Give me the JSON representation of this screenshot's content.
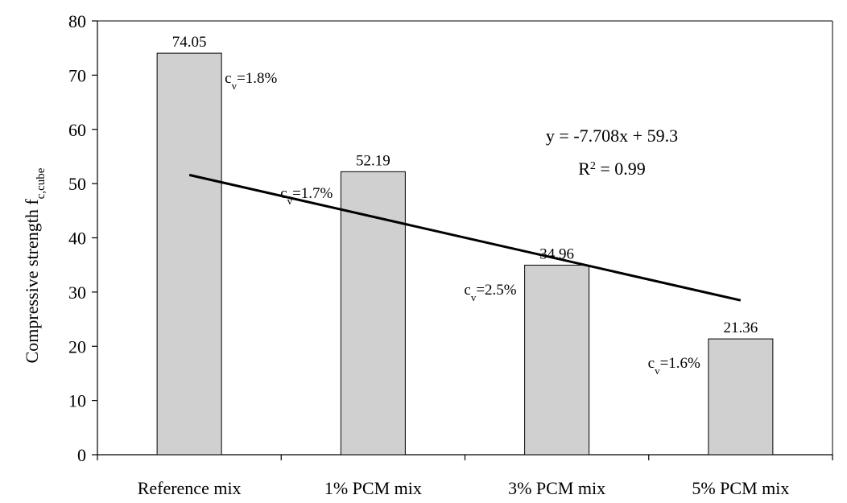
{
  "chart_data": {
    "type": "bar",
    "categories": [
      "Reference mix",
      "1% PCM mix",
      "3% PCM mix",
      "5% PCM mix"
    ],
    "values": [
      74.05,
      52.19,
      34.96,
      21.36
    ],
    "data_labels": [
      "74.05",
      "52.19",
      "34.96",
      "21.36"
    ],
    "cv_labels": [
      {
        "prefix": "c",
        "sub": "v",
        "value": "=1.8%"
      },
      {
        "prefix": "c",
        "sub": "v",
        "value": "=1.7%"
      },
      {
        "prefix": "c",
        "sub": "v",
        "value": "=2.5%"
      },
      {
        "prefix": "c",
        "sub": "v",
        "value": "=1.6%"
      }
    ],
    "ylabel": {
      "main": "Compressive strength f",
      "sub": "c,cube"
    },
    "xlabel": "",
    "ylim": [
      0,
      80
    ],
    "yticks": [
      0,
      10,
      20,
      30,
      40,
      50,
      60,
      70,
      80
    ],
    "grid": false,
    "legend": "none",
    "bar_color": "#d0d0d0",
    "trendline": {
      "slope": -7.708,
      "intercept": 59.3,
      "equation": "y = -7.708x  + 59.3",
      "r2_prefix": "R",
      "r2_exp": "2",
      "r2_value": " = 0.99"
    }
  }
}
